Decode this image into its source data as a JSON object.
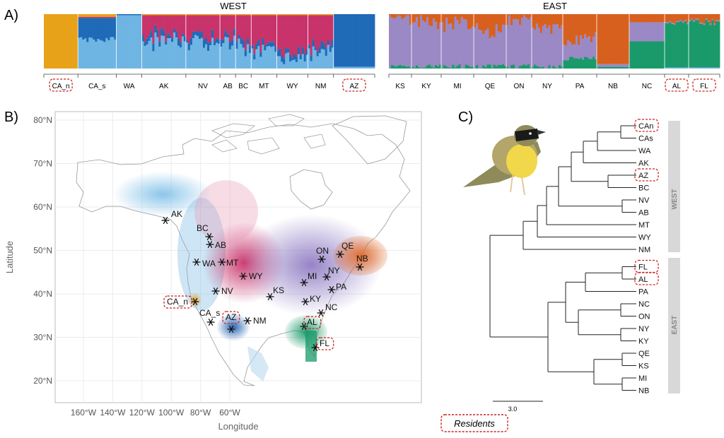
{
  "panel_labels": {
    "a": "A)",
    "b": "B)",
    "c": "C)"
  },
  "colors": {
    "orange_yellow": "#e8a21a",
    "dark_blue": "#1f6bb8",
    "light_blue": "#6fb5e3",
    "crimson": "#c8336a",
    "purple": "#9a89c4",
    "rust": "#d8601e",
    "green": "#1a9a6a",
    "resident_box": "#cc2222"
  },
  "structure": {
    "west_title": "WEST",
    "east_title": "EAST",
    "west_pops": [
      "CA_n",
      "CA_s",
      "WA",
      "AK",
      "NV",
      "AB",
      "BC",
      "MT",
      "WY",
      "NM",
      "AZ"
    ],
    "east_pops": [
      "KS",
      "KY",
      "MI",
      "QE",
      "ON",
      "NY",
      "PA",
      "NB",
      "NC",
      "AL",
      "FL"
    ],
    "west_residents": [
      "CA_n",
      "AZ"
    ],
    "east_residents": [
      "AL",
      "FL"
    ]
  },
  "map": {
    "ylabel": "Latitude",
    "xlabel": "Longitude",
    "lat_ticks": [
      "80°N",
      "70°N",
      "60°N",
      "50°N",
      "40°N",
      "30°N",
      "20°N"
    ],
    "lon_ticks": [
      "160°W",
      "140°W",
      "120°W",
      "100°W",
      "80°W",
      "60°W"
    ],
    "sites": [
      {
        "label": "AK"
      },
      {
        "label": "BC"
      },
      {
        "label": "AB"
      },
      {
        "label": "WA"
      },
      {
        "label": "MT"
      },
      {
        "label": "WY"
      },
      {
        "label": "NV"
      },
      {
        "label": "CA_n",
        "resident": true
      },
      {
        "label": "CA_s"
      },
      {
        "label": "AZ",
        "resident": true
      },
      {
        "label": "NM"
      },
      {
        "label": "KS"
      },
      {
        "label": "MI"
      },
      {
        "label": "ON"
      },
      {
        "label": "QE"
      },
      {
        "label": "NY"
      },
      {
        "label": "NB"
      },
      {
        "label": "PA"
      },
      {
        "label": "KY"
      },
      {
        "label": "NC"
      },
      {
        "label": "AL",
        "resident": true
      },
      {
        "label": "FL",
        "resident": true
      }
    ]
  },
  "tree": {
    "tips": [
      "CAn",
      "CAs",
      "WA",
      "AK",
      "AZ",
      "BC",
      "NV",
      "AB",
      "MT",
      "WY",
      "NM",
      "FL",
      "AL",
      "PA",
      "NC",
      "ON",
      "NY",
      "KY",
      "QE",
      "KS",
      "MI",
      "NB"
    ],
    "residents": [
      "CAn",
      "AZ",
      "FL",
      "AL"
    ],
    "west_label": "WEST",
    "east_label": "EAST",
    "scale_label": "3.0"
  },
  "legend": {
    "residents_label": "Residents"
  }
}
